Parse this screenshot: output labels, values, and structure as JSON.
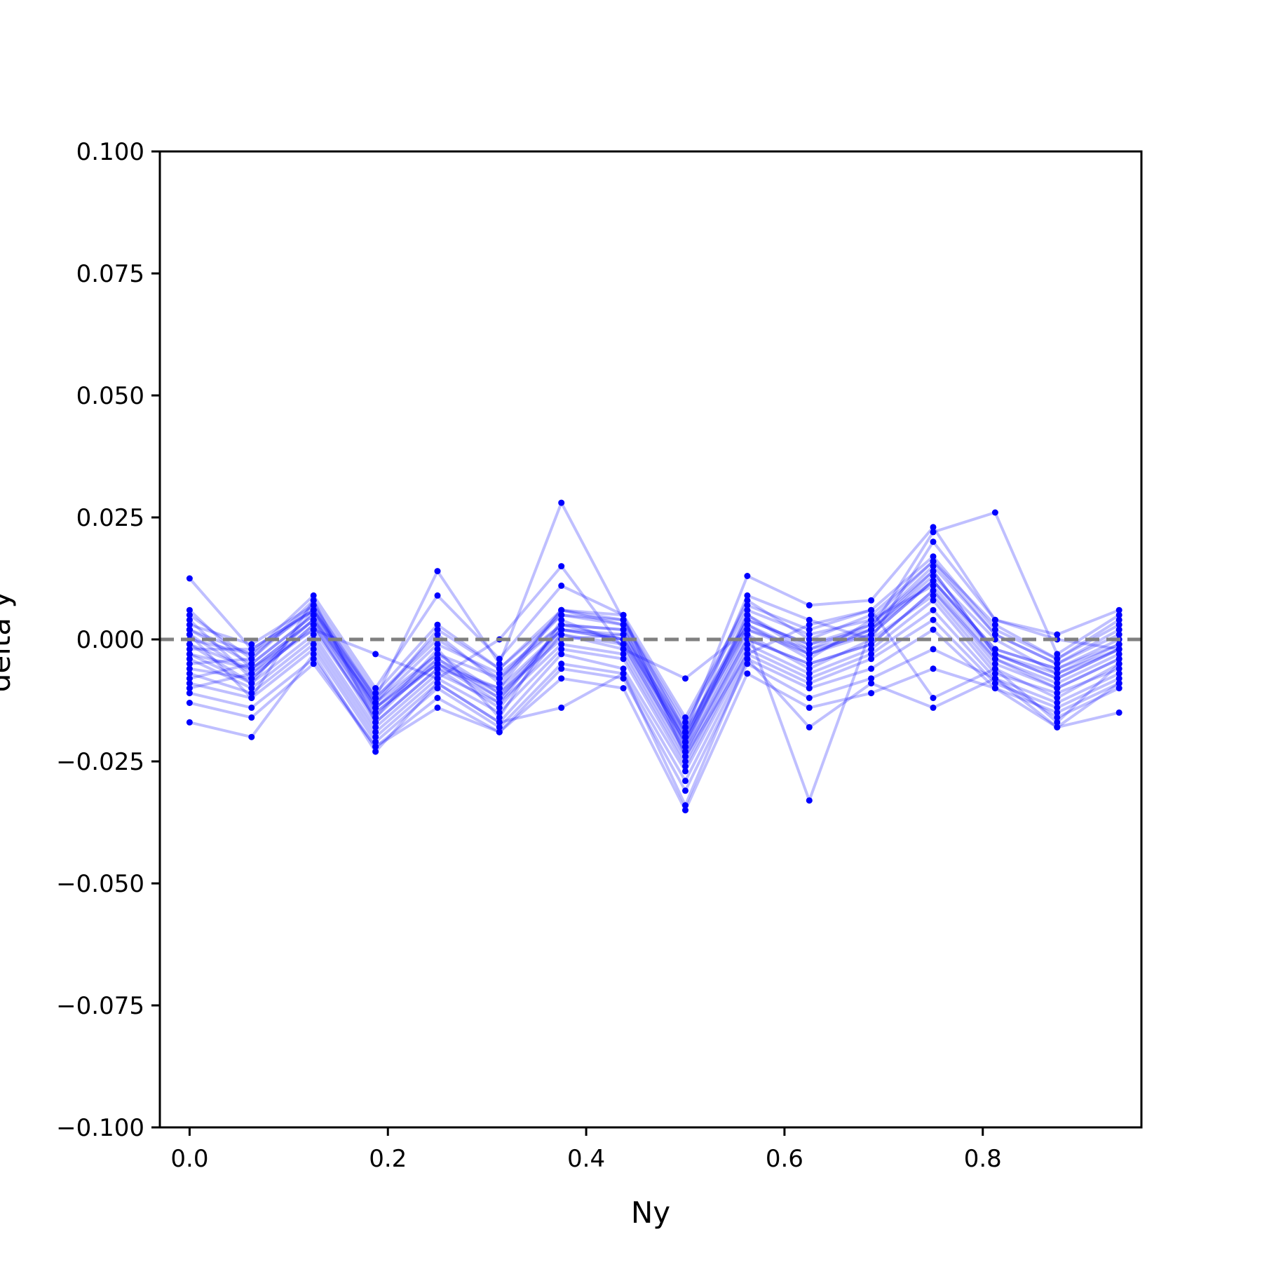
{
  "chart_data": {
    "type": "line",
    "title": "",
    "xlabel": "Ny",
    "ylabel": "delta y",
    "xlim": [
      -0.03,
      0.96
    ],
    "ylim": [
      -0.1,
      0.1
    ],
    "xticks": [
      0.0,
      0.2,
      0.4,
      0.6,
      0.8
    ],
    "xtick_labels": [
      "0.0",
      "0.2",
      "0.4",
      "0.6",
      "0.8"
    ],
    "yticks": [
      0.1,
      0.075,
      0.05,
      0.025,
      0.0,
      -0.025,
      -0.05,
      -0.075,
      -0.1
    ],
    "ytick_labels": [
      "0.100",
      "0.075",
      "0.050",
      "0.025",
      "0.000",
      "−0.025",
      "−0.050",
      "−0.075",
      "−0.100"
    ],
    "grid": false,
    "legend": "none",
    "reference_line": {
      "y": 0.0,
      "style": "dashed",
      "color": "#808080"
    },
    "series_color": "#0000ff",
    "x": [
      0.0,
      0.0625,
      0.125,
      0.1875,
      0.25,
      0.3125,
      0.375,
      0.4375,
      0.5,
      0.5625,
      0.625,
      0.6875,
      0.75,
      0.8125,
      0.875,
      0.9375
    ],
    "series": [
      {
        "values": [
          0.0125,
          -0.002,
          0.006,
          -0.013,
          -0.003,
          -0.008,
          0.003,
          0.002,
          -0.022,
          0.002,
          -0.003,
          0.001,
          0.012,
          -0.002,
          -0.006,
          0.0
        ]
      },
      {
        "values": [
          0.006,
          -0.006,
          0.004,
          -0.015,
          -0.005,
          -0.012,
          0.002,
          0.0,
          -0.02,
          0.005,
          -0.002,
          0.003,
          0.014,
          -0.003,
          -0.008,
          -0.002
        ]
      },
      {
        "values": [
          0.005,
          -0.004,
          0.008,
          -0.011,
          0.003,
          -0.006,
          0.005,
          0.004,
          -0.018,
          0.008,
          0.0,
          0.005,
          0.016,
          0.001,
          -0.005,
          0.002
        ]
      },
      {
        "values": [
          0.004,
          -0.008,
          0.003,
          -0.017,
          -0.006,
          -0.014,
          0.001,
          -0.002,
          -0.024,
          0.0,
          -0.005,
          -0.001,
          0.01,
          -0.005,
          -0.01,
          -0.004
        ]
      },
      {
        "values": [
          0.003,
          -0.001,
          0.007,
          -0.012,
          0.001,
          -0.009,
          0.006,
          0.003,
          -0.021,
          0.004,
          -0.001,
          0.002,
          0.013,
          0.0,
          -0.007,
          -0.001
        ]
      },
      {
        "values": [
          0.002,
          -0.005,
          0.005,
          -0.014,
          -0.004,
          -0.011,
          0.0,
          0.001,
          -0.019,
          0.003,
          -0.004,
          0.004,
          0.011,
          -0.004,
          -0.009,
          -0.003
        ]
      },
      {
        "values": [
          0.001,
          -0.007,
          0.002,
          -0.016,
          -0.002,
          -0.016,
          0.004,
          -0.001,
          -0.023,
          0.001,
          -0.006,
          0.0,
          0.009,
          -0.006,
          -0.012,
          -0.005
        ]
      },
      {
        "values": [
          0.0,
          -0.003,
          0.009,
          -0.01,
          0.009,
          -0.004,
          0.011,
          0.005,
          -0.016,
          0.007,
          0.002,
          0.006,
          0.017,
          0.002,
          -0.004,
          0.004
        ]
      },
      {
        "values": [
          -0.001,
          -0.009,
          0.001,
          -0.018,
          -0.007,
          -0.013,
          -0.001,
          -0.003,
          -0.025,
          -0.001,
          -0.007,
          -0.002,
          0.008,
          -0.007,
          -0.011,
          -0.006
        ]
      },
      {
        "values": [
          -0.002,
          -0.002,
          0.006,
          -0.013,
          -0.001,
          -0.007,
          0.003,
          0.002,
          -0.02,
          0.002,
          -0.002,
          0.001,
          0.012,
          -0.002,
          -0.006,
          -0.001
        ]
      },
      {
        "values": [
          -0.003,
          -0.006,
          0.004,
          -0.015,
          -0.005,
          -0.01,
          0.002,
          0.0,
          -0.022,
          0.005,
          -0.003,
          0.002,
          0.014,
          -0.003,
          -0.008,
          -0.002
        ]
      },
      {
        "values": [
          -0.004,
          -0.01,
          0.0,
          -0.019,
          -0.008,
          -0.015,
          -0.002,
          -0.004,
          -0.026,
          -0.002,
          -0.008,
          -0.003,
          0.006,
          -0.008,
          -0.013,
          -0.007
        ]
      },
      {
        "values": [
          -0.005,
          -0.004,
          0.007,
          -0.012,
          0.0,
          -0.008,
          0.005,
          0.003,
          -0.019,
          0.004,
          -0.001,
          0.003,
          0.015,
          0.001,
          -0.005,
          0.001
        ]
      },
      {
        "values": [
          -0.006,
          -0.008,
          0.003,
          -0.016,
          -0.004,
          -0.012,
          0.001,
          -0.001,
          -0.023,
          0.0,
          -0.005,
          -0.001,
          0.01,
          -0.004,
          -0.01,
          -0.004
        ]
      },
      {
        "values": [
          -0.007,
          -0.011,
          -0.001,
          -0.02,
          -0.009,
          -0.017,
          -0.003,
          -0.006,
          -0.027,
          -0.003,
          -0.009,
          -0.004,
          0.004,
          -0.009,
          -0.014,
          -0.008
        ]
      },
      {
        "values": [
          -0.008,
          -0.005,
          0.005,
          -0.014,
          -0.003,
          -0.011,
          0.002,
          0.001,
          -0.021,
          0.003,
          -0.003,
          0.002,
          0.012,
          -0.003,
          -0.007,
          -0.002
        ]
      },
      {
        "values": [
          -0.009,
          -0.012,
          -0.002,
          -0.021,
          -0.01,
          -0.018,
          -0.005,
          -0.007,
          -0.029,
          -0.004,
          -0.01,
          -0.006,
          0.002,
          -0.01,
          -0.015,
          -0.009
        ]
      },
      {
        "values": [
          -0.01,
          -0.007,
          0.004,
          -0.013,
          0.002,
          -0.006,
          0.006,
          0.004,
          -0.017,
          0.006,
          0.001,
          0.004,
          0.016,
          0.003,
          -0.004,
          0.003
        ]
      },
      {
        "values": [
          -0.011,
          -0.014,
          -0.004,
          -0.022,
          -0.012,
          -0.019,
          -0.006,
          -0.008,
          -0.031,
          -0.005,
          -0.012,
          -0.008,
          -0.002,
          -0.008,
          -0.016,
          -0.01
        ]
      },
      {
        "values": [
          -0.013,
          -0.016,
          -0.005,
          -0.022,
          -0.014,
          -0.019,
          -0.008,
          -0.01,
          -0.035,
          -0.007,
          -0.014,
          -0.011,
          -0.006,
          -0.01,
          -0.018,
          -0.015
        ]
      },
      {
        "values": [
          -0.017,
          -0.02,
          -0.003,
          -0.023,
          -0.009,
          -0.017,
          -0.014,
          -0.007,
          -0.034,
          -0.004,
          -0.018,
          -0.009,
          -0.014,
          -0.008,
          -0.018,
          -0.009
        ]
      },
      {
        "values": [
          0.002,
          -0.003,
          0.006,
          -0.012,
          0.014,
          -0.005,
          0.028,
          0.004,
          -0.019,
          0.013,
          0.007,
          0.008,
          0.023,
          0.004,
          0.001,
          0.006
        ]
      },
      {
        "values": [
          -0.001,
          -0.006,
          0.002,
          -0.003,
          -0.008,
          0.0,
          0.015,
          -0.002,
          -0.008,
          0.002,
          -0.033,
          0.002,
          0.022,
          0.026,
          -0.003,
          0.005
        ]
      },
      {
        "values": [
          -0.003,
          -0.009,
          0.006,
          -0.014,
          -0.005,
          -0.013,
          0.003,
          0.0,
          -0.021,
          0.009,
          0.004,
          0.0,
          0.02,
          0.004,
          0.0,
          -0.002
        ]
      },
      {
        "values": [
          0.001,
          -0.012,
          0.008,
          -0.017,
          -0.006,
          -0.01,
          0.006,
          0.005,
          -0.024,
          -0.003,
          0.003,
          0.006,
          -0.012,
          -0.006,
          -0.017,
          -0.005
        ]
      }
    ]
  }
}
